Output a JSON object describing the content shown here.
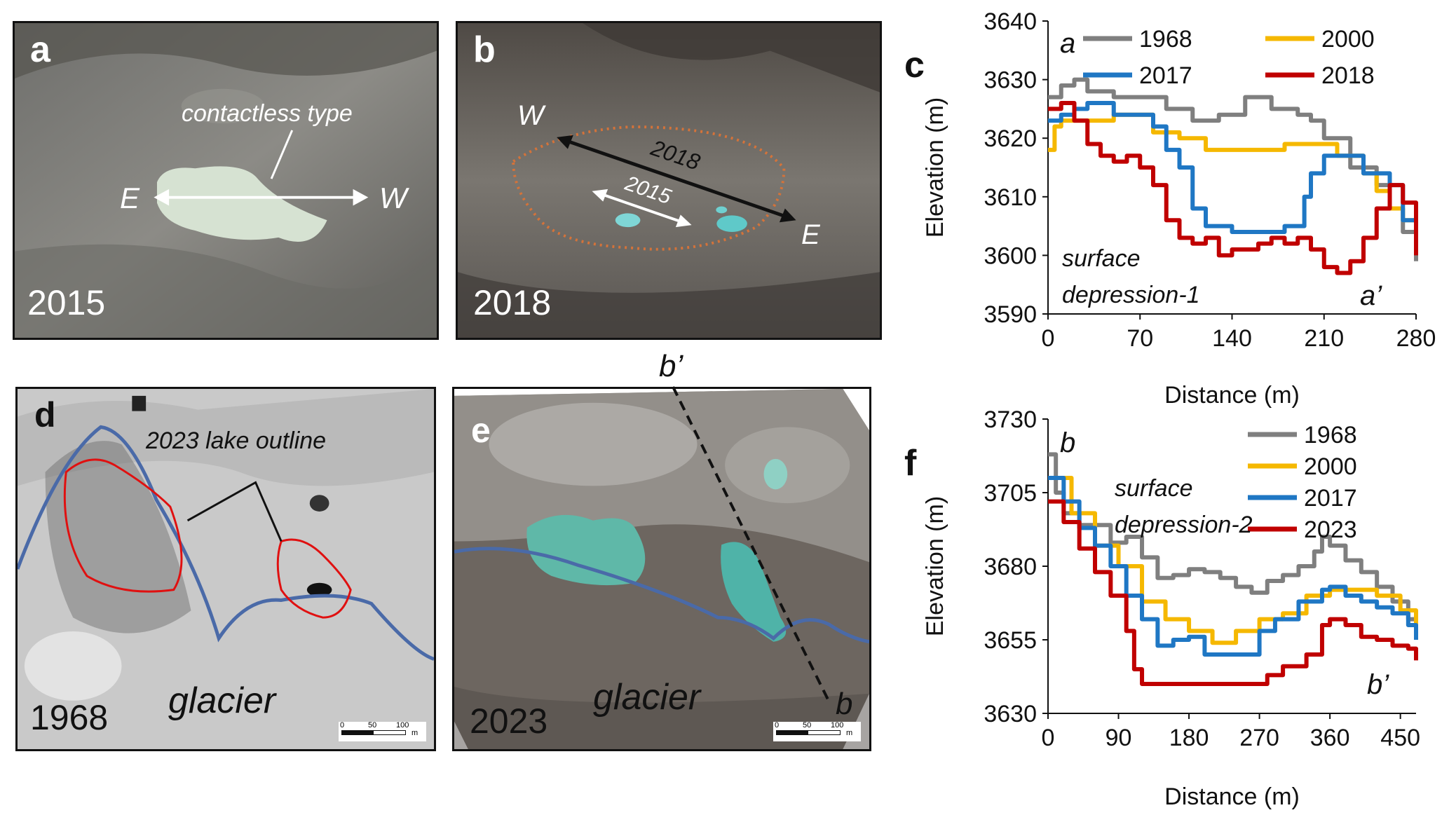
{
  "panels": {
    "a": {
      "letter": "a",
      "year": "2015",
      "annotation": "contactless type",
      "east": "E",
      "west": "W"
    },
    "b": {
      "letter": "b",
      "year": "2018",
      "west": "W",
      "east": "E",
      "arrow_2018": "2018",
      "arrow_2015": "2015"
    },
    "d": {
      "letter": "d",
      "year": "1968",
      "outline_label": "2023 lake outline",
      "glacier": "glacier",
      "scale_ticks": [
        "0",
        "50",
        "100"
      ],
      "scale_unit": "m"
    },
    "e": {
      "letter": "e",
      "year": "2023",
      "glacier": "glacier",
      "profile_start": "b’",
      "profile_end": "b",
      "scale_ticks": [
        "0",
        "50",
        "100"
      ],
      "scale_unit": "m"
    }
  },
  "colors": {
    "1968": "#7f7f7f",
    "2000": "#f5b800",
    "2017": "#1f77c4",
    "2018": "#c00000",
    "2023": "#c00000",
    "lake_outline": "#e01010",
    "glacier_line": "#4a6aa8",
    "lake_2018_outline": "#d4733a"
  },
  "chart_data": [
    {
      "panel": "c",
      "type": "line",
      "xlabel": "Distance (m)",
      "ylabel": "Elevation (m)",
      "xlim": [
        0,
        280
      ],
      "ylim": [
        3590,
        3640
      ],
      "xticks": [
        0,
        70,
        140,
        210,
        280
      ],
      "yticks": [
        3590,
        3600,
        3610,
        3620,
        3630,
        3640
      ],
      "start_label": "a",
      "end_label": "a’",
      "annotation": [
        "surface",
        "depression-1"
      ],
      "legend": "top",
      "grid": false,
      "series": [
        {
          "name": "1968",
          "x": [
            0,
            10,
            20,
            30,
            50,
            70,
            90,
            110,
            130,
            150,
            170,
            190,
            200,
            210,
            230,
            250,
            260,
            270,
            280
          ],
          "y": [
            3627,
            3629,
            3630,
            3628,
            3627,
            3627,
            3625,
            3623,
            3624,
            3627,
            3625,
            3624,
            3623,
            3620,
            3615,
            3612,
            3608,
            3604,
            3599
          ]
        },
        {
          "name": "2000",
          "x": [
            0,
            5,
            10,
            20,
            50,
            70,
            80,
            100,
            120,
            140,
            160,
            180,
            200,
            220,
            240,
            250,
            260,
            270,
            280
          ],
          "y": [
            3618,
            3622,
            3623,
            3623,
            3624,
            3624,
            3621,
            3620,
            3618,
            3618,
            3618,
            3619,
            3619,
            3617,
            3614,
            3611,
            3608,
            3606,
            3601
          ]
        },
        {
          "name": "2017",
          "x": [
            0,
            10,
            20,
            30,
            50,
            70,
            80,
            90,
            100,
            110,
            120,
            140,
            160,
            180,
            190,
            195,
            200,
            210,
            220,
            240,
            260,
            270,
            280
          ],
          "y": [
            3623,
            3624,
            3625,
            3626,
            3624,
            3624,
            3622,
            3618,
            3615,
            3608,
            3605,
            3604,
            3604,
            3605,
            3605,
            3610,
            3614,
            3617,
            3617,
            3614,
            3612,
            3606,
            3602
          ]
        },
        {
          "name": "2018",
          "x": [
            0,
            10,
            20,
            30,
            40,
            50,
            60,
            70,
            80,
            90,
            100,
            110,
            120,
            130,
            140,
            150,
            160,
            170,
            180,
            190,
            200,
            210,
            220,
            230,
            240,
            250,
            260,
            270,
            280
          ],
          "y": [
            3625,
            3626,
            3623,
            3619,
            3617,
            3616,
            3617,
            3615,
            3612,
            3606,
            3603,
            3602,
            3603,
            3600,
            3601,
            3601,
            3602,
            3603,
            3602,
            3603,
            3601,
            3598,
            3597,
            3599,
            3603,
            3608,
            3612,
            3609,
            3600
          ]
        }
      ]
    },
    {
      "panel": "f",
      "type": "line",
      "xlabel": "Distance (m)",
      "ylabel": "Elevation (m)",
      "xlim": [
        0,
        470
      ],
      "ylim": [
        3630,
        3730
      ],
      "xticks": [
        0,
        90,
        180,
        270,
        360,
        450
      ],
      "yticks": [
        3630,
        3655,
        3680,
        3705,
        3730
      ],
      "start_label": "b",
      "end_label": "b’",
      "annotation": [
        "surface",
        "depression-2"
      ],
      "legend": "top-right",
      "grid": false,
      "series": [
        {
          "name": "1968",
          "x": [
            0,
            10,
            20,
            40,
            60,
            80,
            100,
            120,
            140,
            160,
            180,
            200,
            220,
            240,
            260,
            280,
            300,
            320,
            340,
            350,
            360,
            380,
            400,
            420,
            440,
            460,
            470
          ],
          "y": [
            3718,
            3705,
            3698,
            3694,
            3694,
            3688,
            3690,
            3683,
            3676,
            3677,
            3679,
            3678,
            3676,
            3673,
            3671,
            3675,
            3677,
            3680,
            3685,
            3690,
            3687,
            3682,
            3678,
            3673,
            3668,
            3662,
            3659
          ]
        },
        {
          "name": "2000",
          "x": [
            0,
            20,
            30,
            60,
            90,
            120,
            150,
            180,
            210,
            240,
            270,
            300,
            330,
            360,
            390,
            420,
            450,
            470
          ],
          "y": [
            3710,
            3710,
            3698,
            3687,
            3680,
            3668,
            3662,
            3658,
            3654,
            3658,
            3662,
            3664,
            3670,
            3672,
            3672,
            3670,
            3665,
            3656
          ]
        },
        {
          "name": "2017",
          "x": [
            0,
            20,
            40,
            60,
            80,
            100,
            120,
            140,
            160,
            180,
            200,
            220,
            240,
            260,
            270,
            290,
            320,
            350,
            360,
            380,
            400,
            420,
            440,
            460,
            470
          ],
          "y": [
            3710,
            3702,
            3693,
            3687,
            3680,
            3670,
            3662,
            3653,
            3655,
            3656,
            3650,
            3650,
            3650,
            3650,
            3658,
            3662,
            3668,
            3672,
            3673,
            3670,
            3668,
            3666,
            3664,
            3660,
            3655
          ]
        },
        {
          "name": "2023",
          "x": [
            0,
            20,
            40,
            60,
            80,
            100,
            110,
            120,
            150,
            180,
            210,
            240,
            270,
            280,
            300,
            330,
            350,
            360,
            380,
            400,
            420,
            440,
            460,
            470
          ],
          "y": [
            3702,
            3695,
            3686,
            3678,
            3670,
            3658,
            3645,
            3640,
            3640,
            3640,
            3640,
            3640,
            3640,
            3643,
            3646,
            3650,
            3660,
            3662,
            3660,
            3656,
            3655,
            3653,
            3652,
            3648
          ]
        }
      ]
    }
  ]
}
